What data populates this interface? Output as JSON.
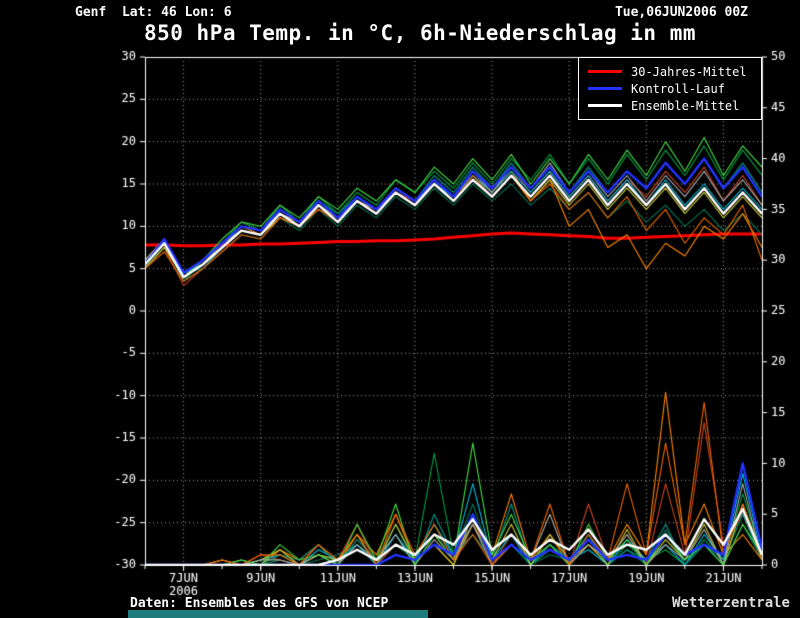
{
  "header": {
    "station": "Genf  Lat: 46 Lon: 6",
    "run": "Tue,06JUN2006 00Z"
  },
  "title": "850 hPa Temp. in °C, 6h-Niederschlag in mm",
  "legend": {
    "items": [
      {
        "label": "30-Jahres-Mittel",
        "color": "#ff0000"
      },
      {
        "label": "Kontroll-Lauf",
        "color": "#2233ff"
      },
      {
        "label": "Ensemble-Mittel",
        "color": "#ffffff"
      }
    ]
  },
  "footer": {
    "credit": "Daten: Ensembles des GFS von NCEP",
    "brand": "Wetterzentrale"
  },
  "chart_data": {
    "type": "line",
    "title": "850 hPa Temp. in °C, 6h-Niederschlag in mm",
    "x_unit": "days since 06JUN2006 00Z",
    "x_step_days": 0.5,
    "x_span_days": 16,
    "x_ticks": [
      {
        "t": 1,
        "label": "7JUN",
        "sublabel": "2006"
      },
      {
        "t": 3,
        "label": "9JUN"
      },
      {
        "t": 5,
        "label": "11JUN"
      },
      {
        "t": 7,
        "label": "13JUN"
      },
      {
        "t": 9,
        "label": "15JUN"
      },
      {
        "t": 11,
        "label": "17JUN"
      },
      {
        "t": 13,
        "label": "19JUN"
      },
      {
        "t": 15,
        "label": "21JUN"
      }
    ],
    "left_axis": {
      "name": "temperature-850hPa-degC",
      "min": -30,
      "max": 30,
      "step": 5,
      "ticks": [
        30,
        25,
        20,
        15,
        10,
        5,
        0,
        -5,
        -10,
        -15,
        -20,
        -25,
        -30
      ]
    },
    "right_axis": {
      "name": "precipitation-6h-mm",
      "min": 0,
      "max": 50,
      "step": 5,
      "ticks": [
        50,
        45,
        40,
        35,
        30,
        25,
        20,
        15,
        10,
        5,
        0
      ]
    },
    "climate": {
      "name": "30-Jahres-Mittel",
      "color": "#ff0000",
      "temps": [
        7.8,
        7.8,
        7.7,
        7.7,
        7.8,
        7.8,
        7.9,
        7.9,
        8.0,
        8.1,
        8.2,
        8.2,
        8.3,
        8.3,
        8.4,
        8.5,
        8.7,
        8.9,
        9.1,
        9.2,
        9.1,
        9.0,
        8.9,
        8.8,
        8.6,
        8.6,
        8.7,
        8.8,
        8.9,
        9.0,
        9.1,
        9.1,
        9.1
      ]
    },
    "control": {
      "name": "Kontroll-Lauf",
      "color": "#2233ff",
      "temps": [
        5.5,
        8.5,
        4.5,
        6.0,
        8.0,
        10.0,
        9.5,
        12.0,
        10.5,
        13.0,
        11.0,
        13.5,
        12.0,
        14.5,
        13.0,
        15.5,
        13.5,
        16.5,
        14.5,
        17.0,
        14.5,
        17.0,
        14.0,
        16.5,
        14.0,
        16.5,
        14.5,
        17.5,
        15.0,
        18.0,
        14.5,
        17.0,
        13.5
      ],
      "precip": [
        0,
        0,
        0,
        0,
        0,
        0,
        0,
        0,
        0,
        0,
        0,
        0,
        0,
        1.0,
        0.5,
        2.0,
        1.0,
        5.0,
        0.5,
        2.0,
        0.5,
        1.5,
        0.5,
        2.5,
        0.5,
        1.0,
        0.5,
        3.0,
        1.0,
        2.0,
        1.0,
        10.0,
        1.5
      ]
    },
    "mean": {
      "name": "Ensemble-Mittel",
      "color": "#ffffff",
      "temps": [
        5.5,
        8.0,
        4.0,
        5.5,
        7.5,
        9.5,
        9.0,
        11.5,
        10.0,
        12.5,
        10.5,
        13.0,
        11.5,
        14.0,
        12.5,
        15.0,
        13.0,
        15.5,
        13.5,
        16.0,
        13.5,
        16.0,
        13.0,
        15.5,
        12.5,
        15.0,
        12.5,
        15.0,
        12.0,
        14.5,
        11.5,
        14.0,
        11.5
      ],
      "precip": [
        0,
        0,
        0,
        0,
        0,
        0,
        0,
        0,
        0,
        0,
        0.5,
        1.5,
        0.5,
        2.0,
        1.0,
        3.0,
        2.0,
        4.5,
        1.5,
        3.0,
        1.0,
        2.5,
        1.5,
        3.5,
        1.0,
        2.0,
        1.5,
        3.0,
        1.0,
        4.5,
        2.0,
        5.5,
        1.0
      ]
    },
    "members": [
      {
        "color": "#00a044",
        "temps": [
          5.0,
          8.5,
          3.5,
          6.0,
          8.0,
          10.5,
          9.5,
          12.5,
          10.5,
          13.5,
          11.5,
          14.0,
          12.5,
          15.5,
          14.0,
          16.5,
          14.5,
          17.5,
          15.0,
          18.0,
          15.5,
          18.5,
          15.0,
          18.0,
          15.0,
          18.5,
          15.5,
          19.0,
          16.0,
          19.5,
          15.5,
          19.0,
          16.0
        ],
        "precip": [
          0,
          0,
          0,
          0,
          0,
          0,
          0,
          0.5,
          0,
          1.0,
          0.5,
          3.0,
          0,
          2.0,
          0.5,
          11.0,
          1.0,
          4.0,
          0.5,
          2.0,
          0,
          1.5,
          0.5,
          3.0,
          0,
          2.0,
          0.5,
          1.5,
          0,
          2.5,
          0.5,
          7.0,
          1.0
        ]
      },
      {
        "color": "#007755",
        "temps": [
          5.5,
          7.5,
          4.5,
          5.0,
          7.0,
          9.0,
          8.5,
          11.0,
          9.5,
          12.0,
          10.0,
          12.5,
          11.0,
          13.5,
          12.0,
          14.5,
          12.5,
          15.0,
          13.0,
          15.0,
          12.5,
          14.5,
          12.0,
          14.0,
          11.0,
          13.0,
          10.5,
          12.5,
          10.0,
          12.0,
          9.5,
          11.5,
          9.0
        ],
        "precip": [
          0,
          0,
          0,
          0,
          0,
          0,
          0.5,
          1.0,
          0,
          0.5,
          1.0,
          2.0,
          0.5,
          4.0,
          0,
          3.0,
          1.0,
          6.0,
          0.5,
          2.0,
          0,
          1.0,
          0.5,
          2.5,
          0,
          1.5,
          0,
          3.5,
          0.5,
          2.0,
          0,
          4.0,
          0.5
        ]
      },
      {
        "color": "#ff8800",
        "temps": [
          6.0,
          8.5,
          4.0,
          6.0,
          8.0,
          10.0,
          9.0,
          11.5,
          10.5,
          12.5,
          11.0,
          13.0,
          12.0,
          14.5,
          13.0,
          15.5,
          13.5,
          16.0,
          14.0,
          16.5,
          13.0,
          15.5,
          10.0,
          12.0,
          7.5,
          9.0,
          5.0,
          8.0,
          6.5,
          10.0,
          8.5,
          11.5,
          7.5
        ],
        "precip": [
          0,
          0,
          0,
          0,
          0,
          0.5,
          0,
          1.5,
          0.5,
          2.0,
          0,
          3.0,
          1.0,
          5.0,
          0.5,
          2.0,
          0,
          4.0,
          1.0,
          7.0,
          0.5,
          3.0,
          0,
          2.0,
          0.5,
          4.0,
          1.0,
          17.0,
          2.0,
          6.0,
          1.0,
          3.0,
          0.5
        ]
      },
      {
        "color": "#cc4422",
        "temps": [
          5.0,
          7.5,
          3.0,
          5.0,
          7.5,
          9.5,
          9.0,
          11.0,
          10.0,
          12.0,
          11.0,
          13.5,
          12.0,
          14.0,
          13.0,
          15.5,
          13.5,
          16.5,
          14.5,
          17.0,
          14.0,
          16.5,
          13.5,
          16.0,
          13.0,
          15.5,
          13.5,
          16.5,
          14.0,
          17.0,
          13.0,
          16.0,
          12.5
        ],
        "precip": [
          0,
          0,
          0,
          0,
          0.5,
          0,
          1.0,
          0.5,
          0,
          2.0,
          0.5,
          4.0,
          0,
          2.0,
          1.0,
          3.0,
          0.5,
          5.0,
          0,
          3.0,
          0.5,
          2.0,
          0,
          6.0,
          0.5,
          3.0,
          0,
          8.0,
          1.0,
          14.0,
          2.0,
          5.0,
          1.0
        ]
      },
      {
        "color": "#00bbdd",
        "temps": [
          6.0,
          8.0,
          4.5,
          5.5,
          7.5,
          9.5,
          9.0,
          11.5,
          10.0,
          12.5,
          11.0,
          13.0,
          11.5,
          14.0,
          12.5,
          15.0,
          13.5,
          16.0,
          14.0,
          16.5,
          14.0,
          16.5,
          13.5,
          16.0,
          13.0,
          15.5,
          12.5,
          15.5,
          12.5,
          15.0,
          12.0,
          14.5,
          12.0
        ],
        "precip": [
          0,
          0,
          0,
          0,
          0,
          0,
          0.5,
          1.0,
          0,
          1.5,
          0.5,
          2.0,
          0,
          3.0,
          0.5,
          4.0,
          1.0,
          8.0,
          0.5,
          3.0,
          0,
          2.0,
          0.5,
          1.5,
          0,
          2.5,
          0.5,
          2.0,
          0,
          3.0,
          0.5,
          9.0,
          1.0
        ]
      },
      {
        "color": "#009988",
        "temps": [
          5.5,
          8.0,
          3.5,
          5.0,
          7.5,
          10.0,
          9.5,
          12.0,
          10.5,
          13.0,
          11.5,
          13.5,
          12.0,
          14.5,
          13.0,
          16.0,
          14.0,
          17.0,
          14.5,
          17.5,
          14.5,
          17.0,
          14.0,
          17.0,
          14.0,
          16.5,
          14.5,
          17.5,
          15.0,
          18.0,
          14.5,
          17.5,
          14.0
        ],
        "precip": [
          0,
          0,
          0,
          0,
          0,
          0.5,
          0,
          1.0,
          0.5,
          2.0,
          0,
          2.5,
          0.5,
          3.0,
          0,
          5.0,
          1.0,
          3.0,
          0.5,
          6.0,
          0,
          2.0,
          0.5,
          3.0,
          0,
          1.5,
          0.5,
          4.0,
          0,
          2.0,
          0.5,
          5.0,
          0.5
        ]
      },
      {
        "color": "#cccc33",
        "temps": [
          5.0,
          7.5,
          4.0,
          5.5,
          8.0,
          9.5,
          9.0,
          11.0,
          10.0,
          12.5,
          11.0,
          13.5,
          12.0,
          14.5,
          13.0,
          15.0,
          13.0,
          15.5,
          13.5,
          16.0,
          13.0,
          15.5,
          12.5,
          15.0,
          12.0,
          14.5,
          12.0,
          14.5,
          11.5,
          14.0,
          11.0,
          13.5,
          11.0
        ],
        "precip": [
          0,
          0,
          0,
          0,
          0.5,
          0,
          0.5,
          1.5,
          0,
          1.0,
          0.5,
          3.0,
          0,
          4.0,
          0.5,
          2.0,
          0,
          5.0,
          0.5,
          4.0,
          0,
          3.0,
          0.5,
          2.0,
          0,
          3.5,
          0,
          2.5,
          0.5,
          4.0,
          0,
          6.0,
          1.0
        ]
      },
      {
        "color": "#aaaaaa",
        "temps": [
          6.0,
          8.5,
          4.5,
          6.0,
          8.0,
          10.0,
          9.5,
          11.5,
          10.5,
          13.0,
          11.0,
          13.0,
          12.0,
          14.0,
          12.5,
          15.5,
          13.5,
          16.5,
          14.0,
          17.0,
          14.5,
          17.5,
          14.0,
          16.5,
          13.5,
          16.0,
          13.0,
          16.0,
          13.5,
          16.5,
          13.0,
          15.5,
          12.5
        ],
        "precip": [
          0,
          0,
          0,
          0,
          0,
          0,
          0.5,
          0.5,
          0,
          1.0,
          0,
          2.0,
          0.5,
          3.0,
          0,
          2.5,
          0.5,
          4.0,
          0,
          2.0,
          0.5,
          5.0,
          0,
          2.0,
          0.5,
          3.0,
          0,
          2.0,
          0.5,
          3.5,
          0,
          8.0,
          0.5
        ]
      },
      {
        "color": "#44dd44",
        "temps": [
          5.5,
          8.0,
          4.0,
          6.0,
          8.5,
          10.5,
          10.0,
          12.5,
          11.0,
          13.5,
          12.0,
          14.5,
          13.0,
          15.5,
          14.0,
          17.0,
          15.0,
          18.0,
          15.5,
          18.5,
          15.0,
          18.0,
          15.0,
          18.5,
          15.5,
          19.0,
          16.0,
          20.0,
          16.5,
          20.5,
          16.0,
          19.5,
          17.0
        ],
        "precip": [
          0,
          0,
          0,
          0,
          0,
          0.5,
          0,
          2.0,
          0.5,
          1.0,
          0,
          4.0,
          0.5,
          6.0,
          0,
          3.0,
          0.5,
          12.0,
          1.0,
          5.0,
          0.5,
          2.0,
          0,
          4.0,
          0.5,
          2.5,
          0,
          3.0,
          0.5,
          2.0,
          0,
          4.0,
          1.0
        ]
      },
      {
        "color": "#ee6600",
        "temps": [
          5.0,
          7.0,
          3.5,
          5.0,
          7.0,
          9.0,
          8.5,
          11.0,
          10.0,
          12.0,
          10.5,
          13.0,
          11.5,
          14.0,
          12.5,
          15.0,
          13.0,
          16.0,
          13.5,
          16.0,
          13.0,
          15.0,
          12.0,
          14.0,
          11.0,
          13.5,
          9.5,
          12.0,
          8.0,
          11.0,
          9.0,
          12.5,
          6.0
        ],
        "precip": [
          0,
          0,
          0,
          0,
          0.5,
          0,
          1.0,
          1.0,
          0,
          2.0,
          0.5,
          3.0,
          0,
          5.0,
          1.0,
          4.0,
          0.5,
          3.0,
          0,
          2.0,
          0.5,
          6.0,
          0,
          3.0,
          0.5,
          8.0,
          1.0,
          12.0,
          2.0,
          16.0,
          1.0,
          6.0,
          0.5
        ]
      }
    ]
  }
}
